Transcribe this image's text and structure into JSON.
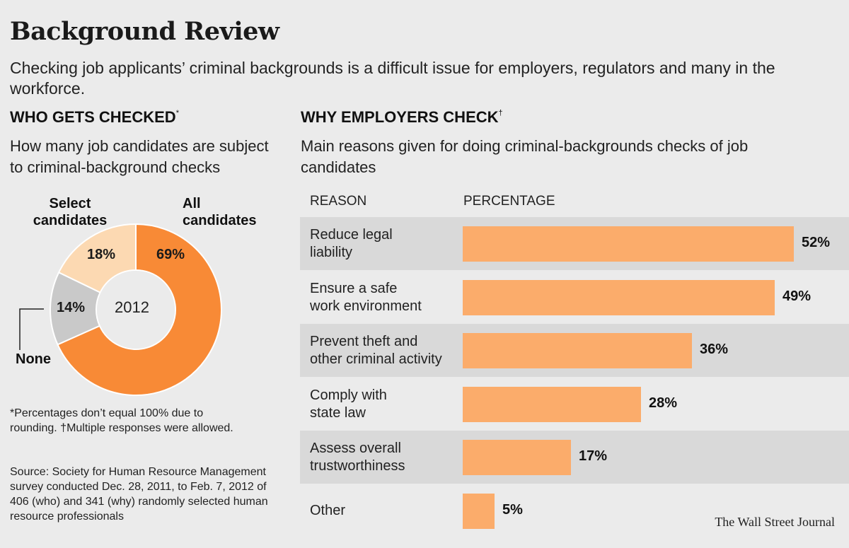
{
  "header": {
    "title": "Background Review",
    "subtitle": "Checking job applicants’ criminal backgrounds is a difficult issue for employers, regulators and many in the workforce."
  },
  "left": {
    "heading": "WHO GETS CHECKED",
    "heading_mark": "*",
    "subheading": "How many job candidates are subject to criminal-background checks",
    "footnote": "*Percentages don’t equal 100% due to rounding. †Multiple responses were allowed.",
    "source": "Source: Society for Human Resource Management survey conducted Dec. 28, 2011, to Feb. 7, 2012 of 406 (who) and 341 (why) randomly selected human resource professionals"
  },
  "right": {
    "heading": "WHY EMPLOYERS CHECK",
    "heading_mark": "†",
    "subheading": "Main reasons given for doing criminal-backgrounds checks of job candidates",
    "col_reason": "REASON",
    "col_percentage": "PERCENTAGE"
  },
  "credit": "The Wall Street Journal",
  "colors": {
    "all": "#f88a36",
    "select": "#fcd9b2",
    "none": "#c9c9c9",
    "bar": "#fbac6b",
    "shade": "#d9d9d9"
  },
  "chart_data": [
    {
      "type": "pie",
      "donut": true,
      "center_label": "2012",
      "slices": [
        {
          "label_line1": "All",
          "label_line2": "candidates",
          "value": 69,
          "value_label": "69%"
        },
        {
          "label_line1": "None",
          "label_line2": "",
          "value": 14,
          "value_label": "14%"
        },
        {
          "label_line1": "Select",
          "label_line2": "candidates",
          "value": 18,
          "value_label": "18%"
        }
      ]
    },
    {
      "type": "bar",
      "orientation": "horizontal",
      "xlim": [
        0,
        100
      ],
      "rows": [
        {
          "line1": "Reduce legal",
          "line2": "liability",
          "value": 52,
          "value_label": "52%"
        },
        {
          "line1": "Ensure a safe",
          "line2": "work environment",
          "value": 49,
          "value_label": "49%"
        },
        {
          "line1": "Prevent theft and",
          "line2": "other criminal activity",
          "value": 36,
          "value_label": "36%"
        },
        {
          "line1": "Comply with",
          "line2": "state law",
          "value": 28,
          "value_label": "28%"
        },
        {
          "line1": "Assess overall",
          "line2": "trustworthiness",
          "value": 17,
          "value_label": "17%"
        },
        {
          "line1": "Other",
          "line2": "",
          "value": 5,
          "value_label": "5%"
        }
      ]
    }
  ]
}
